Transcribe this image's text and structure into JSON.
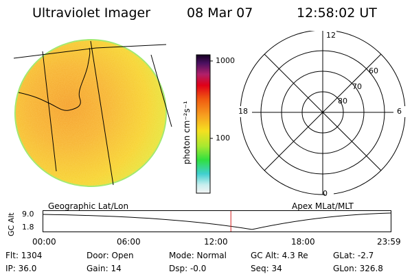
{
  "header": {
    "title": "Ultraviolet Imager",
    "date": "08 Mar 07",
    "time": "12:58:02 UT"
  },
  "colorbar": {
    "unit_label": "photon cm⁻²s⁻¹",
    "ticks": [
      "1000",
      "100"
    ]
  },
  "polar_plot": {
    "mlt_labels": {
      "top": "12",
      "bottom": "0",
      "left": "18",
      "right": "6"
    },
    "lat_labels": [
      "60",
      "70",
      "80"
    ]
  },
  "timeline": {
    "left_label": "Geographic Lat/Lon",
    "right_label": "Apex MLat/MLT",
    "y_axis_title": "GC Alt",
    "y_ticks": [
      "9.0",
      "1.8"
    ],
    "x_ticks": [
      "00:00",
      "06:00",
      "12:00",
      "18:00",
      "23:59"
    ],
    "current_time_fraction": 0.54,
    "marker_color": "#d62020"
  },
  "status": {
    "flt": "Flt: 1304",
    "ip": "IP: 36.0",
    "door": "Door: Open",
    "gain": "Gain: 14",
    "mode": "Mode: Normal",
    "dsp": "Dsp:   -0.0",
    "gcalt": "GC Alt: 4.3 Re",
    "seq": "Seq: 34",
    "glat": "GLat:   -2.7",
    "glon": "GLon: 326.8"
  }
}
